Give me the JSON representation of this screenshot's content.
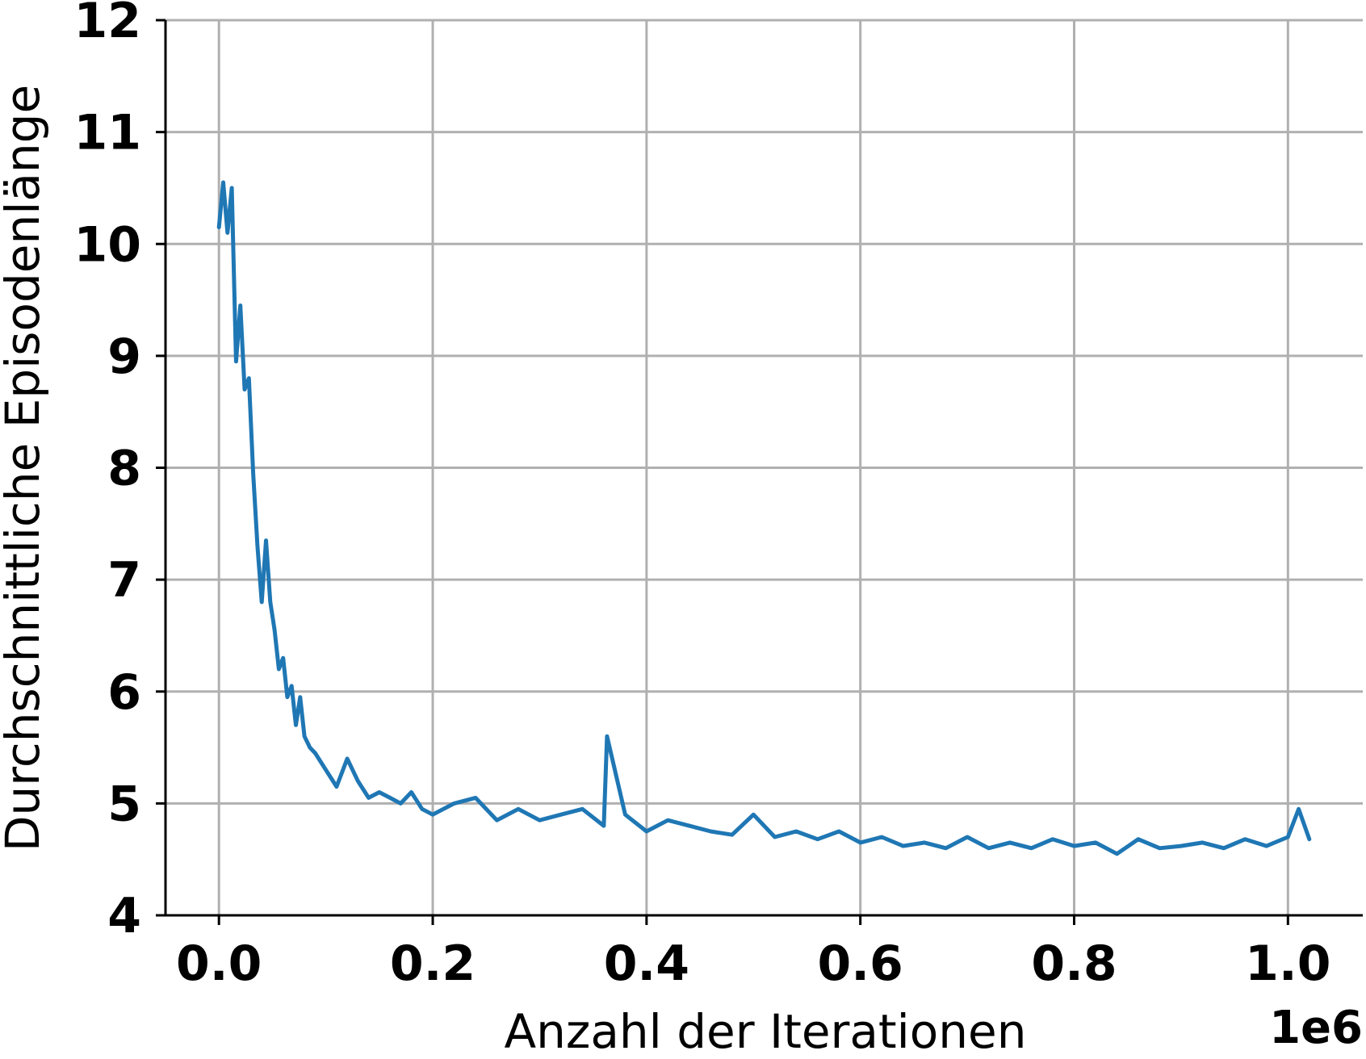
{
  "colors": {
    "series": "#1f77b4",
    "grid": "#b0b0b0",
    "axis": "#000000",
    "background": "#ffffff"
  },
  "chart_data": {
    "type": "line",
    "xlabel": "Anzahl der Iterationen",
    "ylabel": "Durchschnittliche Episodenlänge",
    "x_offset_label": "1e6",
    "xlim": [
      -0.05,
      1.07
    ],
    "ylim": [
      4,
      12
    ],
    "x_ticks": [
      0.0,
      0.2,
      0.4,
      0.6,
      0.8,
      1.0
    ],
    "x_tick_labels": [
      "0.0",
      "0.2",
      "0.4",
      "0.6",
      "0.8",
      "1.0"
    ],
    "y_ticks": [
      4,
      5,
      6,
      7,
      8,
      9,
      10,
      11,
      12
    ],
    "y_tick_labels": [
      "4",
      "5",
      "6",
      "7",
      "8",
      "9",
      "10",
      "11",
      "12"
    ],
    "grid": true,
    "x_unit_scale": 1000000,
    "series": [
      {
        "x": [
          0.0,
          0.004,
          0.008,
          0.012,
          0.016,
          0.02,
          0.024,
          0.028,
          0.032,
          0.036,
          0.04,
          0.044,
          0.048,
          0.052,
          0.056,
          0.06,
          0.064,
          0.068,
          0.072,
          0.076,
          0.08,
          0.085,
          0.09,
          0.1,
          0.11,
          0.12,
          0.13,
          0.14,
          0.15,
          0.16,
          0.17,
          0.18,
          0.19,
          0.2,
          0.22,
          0.24,
          0.26,
          0.28,
          0.3,
          0.32,
          0.34,
          0.36,
          0.363,
          0.38,
          0.4,
          0.42,
          0.44,
          0.46,
          0.48,
          0.5,
          0.52,
          0.54,
          0.56,
          0.58,
          0.6,
          0.62,
          0.64,
          0.66,
          0.68,
          0.7,
          0.72,
          0.74,
          0.76,
          0.78,
          0.8,
          0.82,
          0.84,
          0.86,
          0.88,
          0.9,
          0.92,
          0.94,
          0.96,
          0.98,
          1.0,
          1.01,
          1.02
        ],
        "values": [
          10.15,
          10.55,
          10.1,
          10.5,
          8.95,
          9.45,
          8.7,
          8.8,
          7.95,
          7.3,
          6.8,
          7.35,
          6.8,
          6.55,
          6.2,
          6.3,
          5.95,
          6.05,
          5.7,
          5.95,
          5.6,
          5.5,
          5.45,
          5.3,
          5.15,
          5.4,
          5.2,
          5.05,
          5.1,
          5.05,
          5.0,
          5.1,
          4.95,
          4.9,
          5.0,
          5.05,
          4.85,
          4.95,
          4.85,
          4.9,
          4.95,
          4.8,
          5.6,
          4.9,
          4.75,
          4.85,
          4.8,
          4.75,
          4.72,
          4.9,
          4.7,
          4.75,
          4.68,
          4.75,
          4.65,
          4.7,
          4.62,
          4.65,
          4.6,
          4.7,
          4.6,
          4.65,
          4.6,
          4.68,
          4.62,
          4.65,
          4.55,
          4.68,
          4.6,
          4.62,
          4.65,
          4.6,
          4.68,
          4.62,
          4.7,
          4.95,
          4.68
        ]
      }
    ]
  }
}
